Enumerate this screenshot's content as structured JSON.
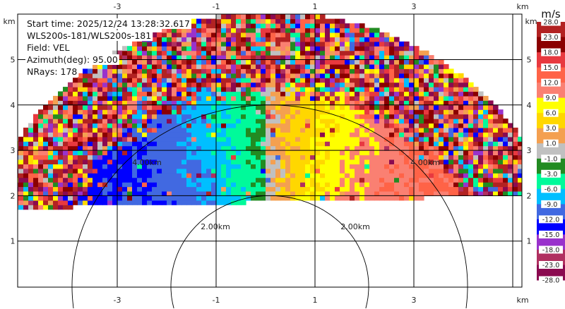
{
  "chart_data": {
    "type": "heatmap",
    "field": "VEL",
    "info": {
      "start_time": "Start time: 2025/12/24 13:28:32.617",
      "instrument": "WLS200s-181/WLS200s-181",
      "field": "Field: VEL",
      "azimuth": "Azimuth(deg): 95.00",
      "nrays": "NRays: 178"
    },
    "xlim": [
      -5,
      5
    ],
    "ylim": [
      0,
      6
    ],
    "x_unit": "km",
    "y_unit": "km",
    "x_ticks": [
      "-3",
      "-1",
      "1",
      "3"
    ],
    "y_ticks": [
      "5",
      "4",
      "3",
      "2",
      "1"
    ],
    "grid": true,
    "range_rings": [
      {
        "radius_km": 2,
        "label": "2.00km"
      },
      {
        "radius_km": 4,
        "label": "4.00km"
      }
    ],
    "colorbar": {
      "unit": "m/s",
      "labels": [
        "28.0",
        "23.0",
        "18.0",
        "15.0",
        "12.0",
        "9.0",
        "6.0",
        "3.0",
        "1.0",
        "-1.0",
        "-3.0",
        "-6.0",
        "-9.0",
        "-12.0",
        "-15.0",
        "-18.0",
        "-23.0",
        "-28.0"
      ],
      "colors": [
        "#b22222",
        "#8b0000",
        "#e8393f",
        "#ff6347",
        "#fa8072",
        "#ffff00",
        "#ffd700",
        "#f4a050",
        "#c0c0c0",
        "#228b22",
        "#00fa9a",
        "#00bfff",
        "#4169e1",
        "#0000ff",
        "#9932cc",
        "#b03060",
        "#8b0a50"
      ]
    },
    "velocity_pattern": {
      "negative_side": "left (toward x<0), approx -6 to -15 m/s",
      "positive_side": "right (x>0), approx 3 to 15 m/s",
      "coherent_range_km": 4.2,
      "max_range_km": 6
    }
  }
}
